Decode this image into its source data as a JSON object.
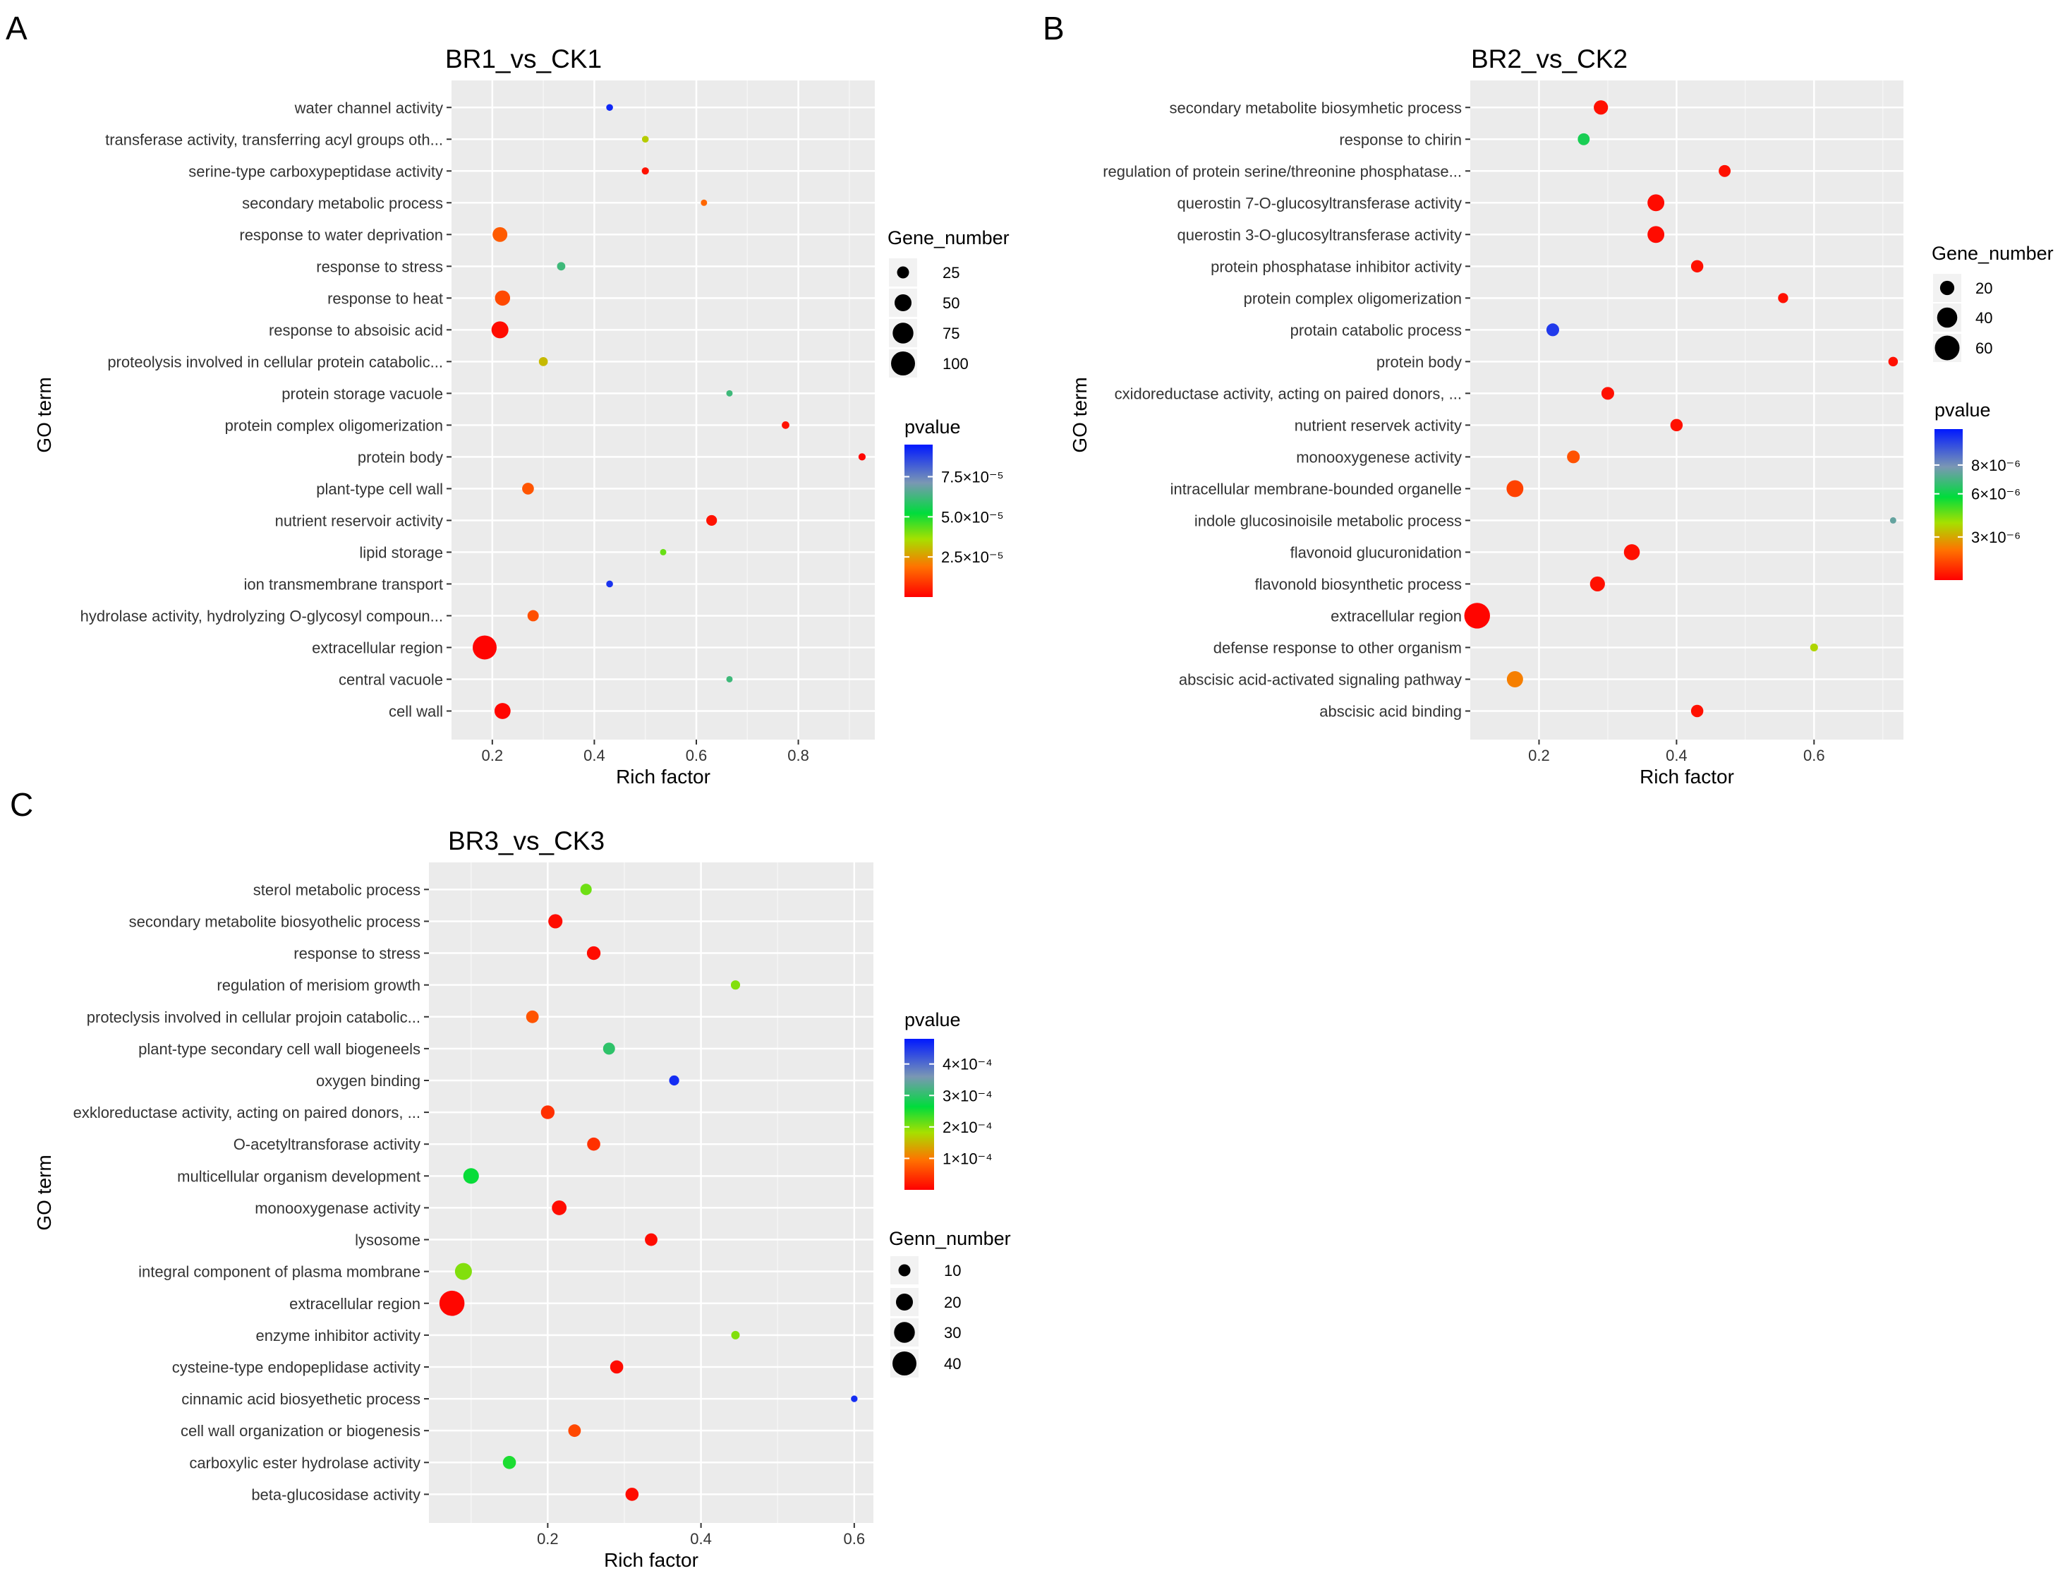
{
  "chart_data": [
    {
      "panel": "A",
      "type": "scatter",
      "title": "BR1_vs_CK1",
      "xlabel": "Rich factor",
      "ylabel": "GO term",
      "xlim": [
        0.12,
        0.95
      ],
      "xticks": [
        0.2,
        0.4,
        0.6,
        0.8
      ],
      "size_legend_title": "Gene_number",
      "size_legend": [
        25,
        50,
        75,
        100
      ],
      "color_legend_title": "pvalue",
      "color_range": [
        0,
        9.5e-05
      ],
      "color_ticks": [
        {
          "value": 7.5e-05,
          "label": "7.5×10⁻⁵"
        },
        {
          "value": 5e-05,
          "label": "5.0×10⁻⁵"
        },
        {
          "value": 2.5e-05,
          "label": "2.5×10⁻⁵"
        }
      ],
      "points": [
        {
          "term": "water channel activity",
          "rich_factor": 0.43,
          "gene_number": 8,
          "pvalue": 9.2e-05
        },
        {
          "term": "transferase activity, transferring acyl groups oth...",
          "rich_factor": 0.5,
          "gene_number": 8,
          "pvalue": 3.3e-05
        },
        {
          "term": "serine-type carboxypeptidase activity",
          "rich_factor": 0.5,
          "gene_number": 9,
          "pvalue": 3e-06
        },
        {
          "term": "secondary metabolic process",
          "rich_factor": 0.615,
          "gene_number": 5,
          "pvalue": 1.7e-05
        },
        {
          "term": "response to water deprivation",
          "rich_factor": 0.215,
          "gene_number": 38,
          "pvalue": 1.5e-05
        },
        {
          "term": "response to stress",
          "rich_factor": 0.335,
          "gene_number": 12,
          "pvalue": 6.2e-05
        },
        {
          "term": "response to heat",
          "rich_factor": 0.22,
          "gene_number": 40,
          "pvalue": 1.2e-05
        },
        {
          "term": "response to absoisic acid",
          "rich_factor": 0.215,
          "gene_number": 50,
          "pvalue": 2e-06
        },
        {
          "term": "proteolysis involved in cellular protein catabolic...",
          "rich_factor": 0.3,
          "gene_number": 14,
          "pvalue": 3e-05
        },
        {
          "term": "protein storage vacuole",
          "rich_factor": 0.665,
          "gene_number": 2,
          "pvalue": 6.2e-05
        },
        {
          "term": "protein complex oligomerization",
          "rich_factor": 0.775,
          "gene_number": 10,
          "pvalue": 3e-06
        },
        {
          "term": "protein body",
          "rich_factor": 0.925,
          "gene_number": 9,
          "pvalue": 1e-06
        },
        {
          "term": "plant-type cell wall",
          "rich_factor": 0.27,
          "gene_number": 24,
          "pvalue": 1.4e-05
        },
        {
          "term": "nutrient reservoir activity",
          "rich_factor": 0.63,
          "gene_number": 20,
          "pvalue": 3e-06
        },
        {
          "term": "lipid storage",
          "rich_factor": 0.535,
          "gene_number": 6,
          "pvalue": 4.2e-05
        },
        {
          "term": "ion transmembrane transport",
          "rich_factor": 0.43,
          "gene_number": 8,
          "pvalue": 9e-05
        },
        {
          "term": "hydrolase activity, hydrolyzing O-glycosyl compoun...",
          "rich_factor": 0.28,
          "gene_number": 22,
          "pvalue": 1.3e-05
        },
        {
          "term": "extracellular region",
          "rich_factor": 0.185,
          "gene_number": 100,
          "pvalue": 5e-07
        },
        {
          "term": "central vacuole",
          "rich_factor": 0.665,
          "gene_number": 2,
          "pvalue": 6.2e-05
        },
        {
          "term": "cell wall",
          "rich_factor": 0.22,
          "gene_number": 45,
          "pvalue": 1e-06
        }
      ]
    },
    {
      "panel": "B",
      "type": "scatter",
      "title": "BR2_vs_CK2",
      "xlabel": "Rich factor",
      "ylabel": "GO term",
      "xlim": [
        0.1,
        0.73
      ],
      "xticks": [
        0.2,
        0.4,
        0.6
      ],
      "size_legend_title": "Gene_number",
      "size_legend": [
        20,
        40,
        60
      ],
      "color_legend_title": "pvalue",
      "color_range": [
        0,
        1.05e-05
      ],
      "color_ticks": [
        {
          "value": 8e-06,
          "label": "8×10⁻⁶"
        },
        {
          "value": 6e-06,
          "label": "6×10⁻⁶"
        },
        {
          "value": 3e-06,
          "label": "3×10⁻⁶"
        }
      ],
      "points": [
        {
          "term": "secondary metabolite biosymhetic process",
          "rich_factor": 0.29,
          "gene_number": 20,
          "pvalue": 3e-07
        },
        {
          "term": "response to chirin",
          "rich_factor": 0.265,
          "gene_number": 14,
          "pvalue": 6.2e-06
        },
        {
          "term": "regulation of protein serine/threonine phosphatase...",
          "rich_factor": 0.47,
          "gene_number": 14,
          "pvalue": 3e-07
        },
        {
          "term": "querostin 7-O-glucosyltransferase activity",
          "rich_factor": 0.37,
          "gene_number": 28,
          "pvalue": 2e-07
        },
        {
          "term": "querostin 3-O-glucosyltransferase activity",
          "rich_factor": 0.37,
          "gene_number": 28,
          "pvalue": 2e-07
        },
        {
          "term": "protein phosphatase inhibitor activity",
          "rich_factor": 0.43,
          "gene_number": 15,
          "pvalue": 3e-07
        },
        {
          "term": "protein complex oligomerization",
          "rich_factor": 0.555,
          "gene_number": 10,
          "pvalue": 3e-07
        },
        {
          "term": "protain catabolic process",
          "rich_factor": 0.22,
          "gene_number": 16,
          "pvalue": 9.8e-06
        },
        {
          "term": "protein body",
          "rich_factor": 0.715,
          "gene_number": 9,
          "pvalue": 3e-07
        },
        {
          "term": "cxidoreductase activity, acting on paired donors, ...",
          "rich_factor": 0.3,
          "gene_number": 16,
          "pvalue": 3e-07
        },
        {
          "term": "nutrient reservek activity",
          "rich_factor": 0.4,
          "gene_number": 15,
          "pvalue": 3e-07
        },
        {
          "term": "monooxygenese activity",
          "rich_factor": 0.25,
          "gene_number": 16,
          "pvalue": 1.5e-06
        },
        {
          "term": "intracellular membrane-bounded organelle",
          "rich_factor": 0.165,
          "gene_number": 28,
          "pvalue": 1.2e-06
        },
        {
          "term": "indole glucosinoisile metabolic process",
          "rich_factor": 0.715,
          "gene_number": 3,
          "pvalue": 7.5e-06
        },
        {
          "term": "flavonoid glucuronidation",
          "rich_factor": 0.335,
          "gene_number": 25,
          "pvalue": 3e-07
        },
        {
          "term": "flavonold biosynthetic process",
          "rich_factor": 0.285,
          "gene_number": 22,
          "pvalue": 3e-07
        },
        {
          "term": "extracellular region",
          "rich_factor": 0.11,
          "gene_number": 65,
          "pvalue": 1e-07
        },
        {
          "term": "defense response to other organism",
          "rich_factor": 0.6,
          "gene_number": 6,
          "pvalue": 3.8e-06
        },
        {
          "term": "abscisic acid-activated signaling pathway",
          "rich_factor": 0.165,
          "gene_number": 26,
          "pvalue": 2.3e-06
        },
        {
          "term": "abscisic acid binding",
          "rich_factor": 0.43,
          "gene_number": 15,
          "pvalue": 3e-07
        }
      ]
    },
    {
      "panel": "C",
      "type": "scatter",
      "title": "BR3_vs_CK3",
      "xlabel": "Rich factor",
      "ylabel": "GO term",
      "xlim": [
        0.045,
        0.625
      ],
      "xticks": [
        0.2,
        0.4,
        0.6
      ],
      "size_legend_title": "Genn_number",
      "size_legend": [
        10,
        20,
        30,
        40
      ],
      "color_legend_title": "pvalue",
      "color_range": [
        0,
        0.00048
      ],
      "color_ticks": [
        {
          "value": 0.0004,
          "label": "4×10⁻⁴"
        },
        {
          "value": 0.0003,
          "label": "3×10⁻⁴"
        },
        {
          "value": 0.0002,
          "label": "2×10⁻⁴"
        },
        {
          "value": 0.0001,
          "label": "1×10⁻⁴"
        }
      ],
      "points": [
        {
          "term": "sterol metabolic process",
          "rich_factor": 0.25,
          "gene_number": 9,
          "pvalue": 0.00021
        },
        {
          "term": "secondary metabolite biosyothelic process",
          "rich_factor": 0.21,
          "gene_number": 14,
          "pvalue": 1e-05
        },
        {
          "term": "response to stress",
          "rich_factor": 0.26,
          "gene_number": 13,
          "pvalue": 1e-05
        },
        {
          "term": "regulation of merisiom growth",
          "rich_factor": 0.445,
          "gene_number": 6,
          "pvalue": 0.0002
        },
        {
          "term": "proteclysis involved in cellular projoin catabolic...",
          "rich_factor": 0.18,
          "gene_number": 11,
          "pvalue": 7e-05
        },
        {
          "term": "plant-type secondary cell wall biogeneels",
          "rich_factor": 0.28,
          "gene_number": 10,
          "pvalue": 0.0003
        },
        {
          "term": "oxygen binding",
          "rich_factor": 0.365,
          "gene_number": 7,
          "pvalue": 0.00046
        },
        {
          "term": "exkloreductase activity, acting on paired donors, ...",
          "rich_factor": 0.2,
          "gene_number": 13,
          "pvalue": 4e-05
        },
        {
          "term": "O-acetyltransforase activity",
          "rich_factor": 0.26,
          "gene_number": 12,
          "pvalue": 4e-05
        },
        {
          "term": "multicellular organism development",
          "rich_factor": 0.1,
          "gene_number": 17,
          "pvalue": 0.00026
        },
        {
          "term": "monooxygenase activity",
          "rich_factor": 0.215,
          "gene_number": 15,
          "pvalue": 1e-05
        },
        {
          "term": "lysosome",
          "rich_factor": 0.335,
          "gene_number": 11,
          "pvalue": 1e-05
        },
        {
          "term": "integral component of plasma mombrane",
          "rich_factor": 0.09,
          "gene_number": 20,
          "pvalue": 0.0002
        },
        {
          "term": "extracellular region",
          "rich_factor": 0.075,
          "gene_number": 44,
          "pvalue": 5e-06
        },
        {
          "term": "enzyme inhibitor activity",
          "rich_factor": 0.445,
          "gene_number": 5,
          "pvalue": 0.0002
        },
        {
          "term": "cysteine-type endopeplidase activity",
          "rich_factor": 0.29,
          "gene_number": 12,
          "pvalue": 1e-05
        },
        {
          "term": "cinnamic acid biosyethetic process",
          "rich_factor": 0.6,
          "gene_number": 3,
          "pvalue": 0.00046
        },
        {
          "term": "cell wall organization or biogenesis",
          "rich_factor": 0.235,
          "gene_number": 11,
          "pvalue": 6e-05
        },
        {
          "term": "carboxylic ester hydrolase activity",
          "rich_factor": 0.15,
          "gene_number": 12,
          "pvalue": 0.00025
        },
        {
          "term": "beta-glucosidase activity",
          "rich_factor": 0.31,
          "gene_number": 12,
          "pvalue": 1e-05
        }
      ]
    }
  ]
}
